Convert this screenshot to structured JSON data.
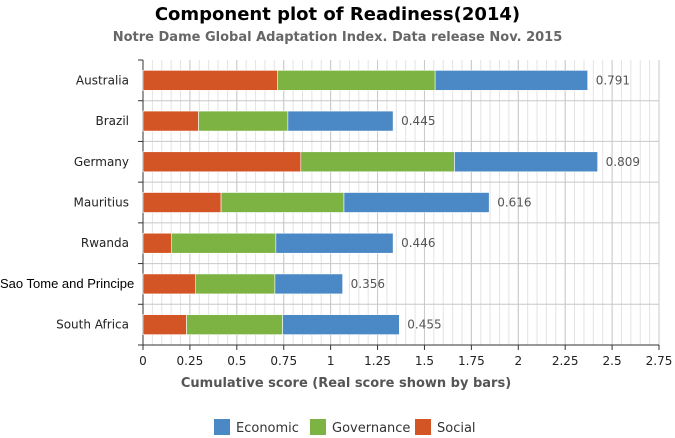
{
  "chart_data": {
    "type": "bar",
    "orientation": "horizontal",
    "stacked": true,
    "title": "Component plot of Readiness(2014)",
    "subtitle": "Notre Dame Global Adaptation Index. Data release Nov. 2015",
    "xlabel": "Cumulative score (Real score shown by bars)",
    "ylabel": "",
    "xlim": [
      0,
      2.75
    ],
    "xticks": [
      "0",
      "0.25",
      "0.5",
      "0.75",
      "1",
      "1.25",
      "1.5",
      "1.75",
      "2",
      "2.25",
      "2.5",
      "2.75"
    ],
    "grid": true,
    "legend_position": "bottom",
    "categories": [
      "Australia",
      "Brazil",
      "Germany",
      "Mauritius",
      "Rwanda",
      "Sao Tome and Principe",
      "South Africa"
    ],
    "series": [
      {
        "name": "Social",
        "color": "#d35424",
        "values": [
          0.716,
          0.296,
          0.841,
          0.416,
          0.153,
          0.281,
          0.232
        ]
      },
      {
        "name": "Governance",
        "color": "#7cb342",
        "values": [
          0.841,
          0.476,
          0.819,
          0.655,
          0.555,
          0.422,
          0.512
        ]
      },
      {
        "name": "Economic",
        "color": "#4a89c5",
        "values": [
          0.813,
          0.561,
          0.763,
          0.774,
          0.625,
          0.361,
          0.622
        ]
      }
    ],
    "data_labels": [
      "0.791",
      "0.445",
      "0.809",
      "0.616",
      "0.446",
      "0.356",
      "0.455"
    ],
    "legend_order": [
      "Economic",
      "Governance",
      "Social"
    ]
  }
}
